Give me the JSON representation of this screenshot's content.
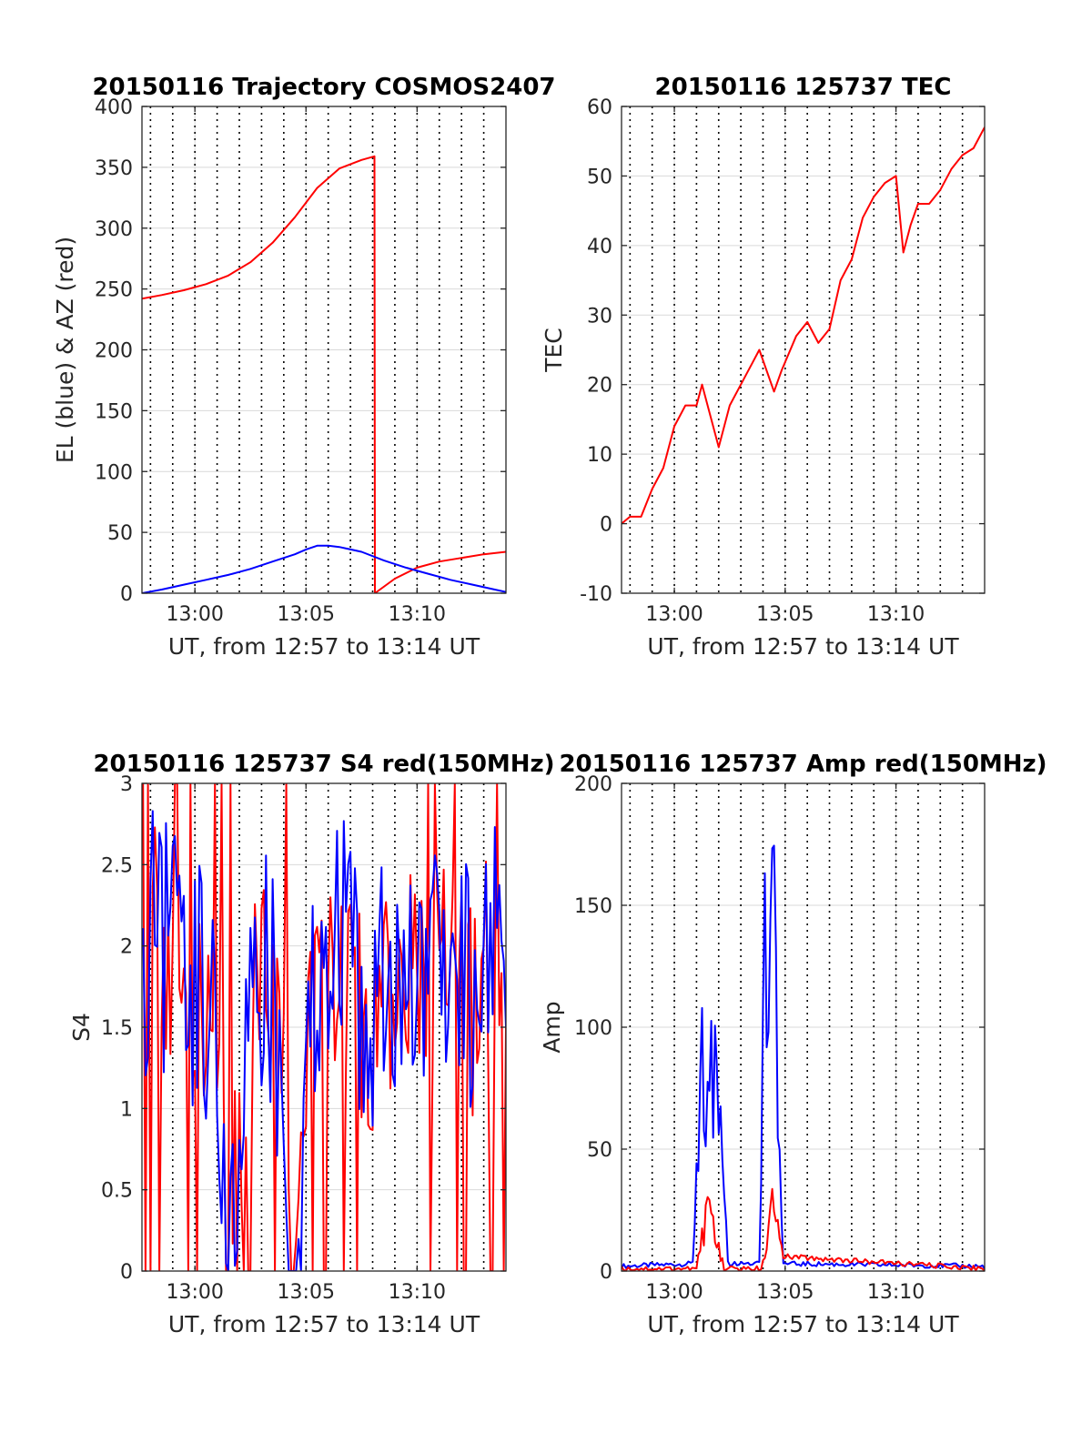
{
  "colors": {
    "red": "#ff0000",
    "blue": "#0000ff",
    "grid": "#d9d9d9",
    "dotted": "#000000",
    "axis": "#262626"
  },
  "chart_data": [
    {
      "type": "line",
      "title": "20150116 Trajectory COSMOS2407",
      "xlabel": "UT, from 12:57 to 13:14 UT",
      "ylabel": "EL (blue) & AZ (red)",
      "xlim": [
        "12:57:37",
        "13:14:00"
      ],
      "ylim": [
        0,
        400
      ],
      "yticks": [
        0,
        50,
        100,
        150,
        200,
        250,
        300,
        350,
        400
      ],
      "xticks": [
        "13:00",
        "13:05",
        "13:10"
      ],
      "minute_markers": [
        "12:58",
        "12:59",
        "13:00",
        "13:01",
        "13:02",
        "13:03",
        "13:04",
        "13:05",
        "13:06",
        "13:07",
        "13:08",
        "13:09",
        "13:10",
        "13:11",
        "13:12",
        "13:13"
      ],
      "grid": true,
      "series": [
        {
          "color": "red",
          "x": [
            "12:57:37",
            "12:58:30",
            "12:59:30",
            "13:00:30",
            "13:01:30",
            "13:02:30",
            "13:03:30",
            "13:04:30",
            "13:05:30",
            "13:06:30",
            "13:07:30",
            "13:08:05",
            "13:08:06",
            "13:09:00",
            "13:10:00",
            "13:11:00",
            "13:12:00",
            "13:13:00",
            "13:14:00"
          ],
          "y": [
            242,
            245,
            249,
            254,
            261,
            272,
            288,
            309,
            333,
            349,
            356,
            359,
            0,
            12,
            21,
            26,
            29,
            32,
            34
          ]
        },
        {
          "color": "blue",
          "x": [
            "12:57:37",
            "12:58:30",
            "12:59:30",
            "13:00:30",
            "13:01:30",
            "13:02:30",
            "13:03:30",
            "13:04:30",
            "13:05:00",
            "13:05:30",
            "13:06:00",
            "13:06:30",
            "13:07:30",
            "13:08:30",
            "13:09:30",
            "13:10:30",
            "13:11:30",
            "13:12:30",
            "13:13:30",
            "13:14:00"
          ],
          "y": [
            0,
            3,
            7,
            11,
            15,
            20,
            26,
            32,
            36,
            39,
            39,
            38,
            34,
            27,
            21,
            16,
            11,
            7,
            3,
            1
          ]
        }
      ]
    },
    {
      "type": "line",
      "title": "20150116 125737 TEC",
      "xlabel": "UT, from 12:57 to 13:14 UT",
      "ylabel": "TEC",
      "xlim": [
        "12:57:37",
        "13:14:00"
      ],
      "ylim": [
        -10,
        60
      ],
      "yticks": [
        -10,
        0,
        10,
        20,
        30,
        40,
        50,
        60
      ],
      "xticks": [
        "13:00",
        "13:05",
        "13:10"
      ],
      "minute_markers": [
        "12:58",
        "12:59",
        "13:00",
        "13:01",
        "13:02",
        "13:03",
        "13:04",
        "13:05",
        "13:06",
        "13:07",
        "13:08",
        "13:09",
        "13:10",
        "13:11",
        "13:12",
        "13:13"
      ],
      "grid": true,
      "series": [
        {
          "color": "red",
          "x": [
            "12:57:37",
            "12:58:00",
            "12:58:30",
            "12:59:00",
            "12:59:30",
            "13:00:00",
            "13:00:30",
            "13:01:00",
            "13:01:15",
            "13:02:00",
            "13:02:30",
            "13:03:00",
            "13:03:30",
            "13:03:50",
            "13:04:30",
            "13:04:50",
            "13:05:30",
            "13:06:00",
            "13:06:30",
            "13:07:00",
            "13:07:30",
            "13:08:00",
            "13:08:30",
            "13:09:00",
            "13:09:30",
            "13:10:00",
            "13:10:20",
            "13:10:40",
            "13:11:00",
            "13:11:30",
            "13:12:00",
            "13:12:30",
            "13:13:00",
            "13:13:30",
            "13:14:00"
          ],
          "y": [
            0,
            1,
            1,
            5,
            8,
            14,
            17,
            17,
            20,
            11,
            17,
            20,
            23,
            25,
            19,
            22,
            27,
            29,
            26,
            28,
            35,
            38,
            44,
            47,
            49,
            50,
            39,
            43,
            46,
            46,
            48,
            51,
            53,
            54,
            57
          ]
        }
      ]
    },
    {
      "type": "line",
      "title": "20150116 125737 S4 red(150MHz)",
      "xlabel": "UT, from 12:57 to 13:14 UT",
      "ylabel": "S4",
      "xlim": [
        "12:57:37",
        "13:14:00"
      ],
      "ylim": [
        0,
        3
      ],
      "yticks": [
        0,
        0.5,
        1,
        1.5,
        2,
        2.5,
        3
      ],
      "ytick_labels": [
        "0",
        "0.5",
        "1",
        "1.5",
        "2",
        "2.5",
        "3"
      ],
      "xticks": [
        "13:00",
        "13:05",
        "13:10"
      ],
      "minute_markers": [
        "12:58",
        "12:59",
        "13:00",
        "13:01",
        "13:02",
        "13:03",
        "13:04",
        "13:05",
        "13:06",
        "13:07",
        "13:08",
        "13:09",
        "13:10",
        "13:11",
        "13:12",
        "13:13"
      ],
      "grid": true,
      "series": [
        {
          "color": "red",
          "x": [
            "12:57:40",
            "12:58:00",
            "12:58:30",
            "12:59:00",
            "12:59:30",
            "13:00:00",
            "13:00:30",
            "13:01:00",
            "13:01:30",
            "13:02:00",
            "13:02:30",
            "13:03:00",
            "13:03:30",
            "13:04:00",
            "13:04:20",
            "13:04:40",
            "13:05:00",
            "13:05:30",
            "13:06:00",
            "13:06:30",
            "13:07:00",
            "13:07:30",
            "13:08:00",
            "13:08:30",
            "13:09:00",
            "13:09:30",
            "13:10:00",
            "13:10:30",
            "13:11:00",
            "13:11:30",
            "13:12:00",
            "13:12:30",
            "13:13:00",
            "13:13:30",
            "13:14:00"
          ],
          "y": [
            1.4,
            2.5,
            2.0,
            1.8,
            1.7,
            1.9,
            1.6,
            1.4,
            0.5,
            0.5,
            1.5,
            1.8,
            1.6,
            1.1,
            0.2,
            0.3,
            1.3,
            1.6,
            1.7,
            2.0,
            1.8,
            1.6,
            1.5,
            1.8,
            1.7,
            2.0,
            1.7,
            1.6,
            2.0,
            1.7,
            1.8,
            1.6,
            1.9,
            2.0,
            1.5
          ]
        },
        {
          "color": "blue",
          "x": [
            "12:57:40",
            "12:58:00",
            "12:58:30",
            "12:59:00",
            "12:59:30",
            "13:00:00",
            "13:00:30",
            "13:01:00",
            "13:01:30",
            "13:02:00",
            "13:02:30",
            "13:03:00",
            "13:03:30",
            "13:04:00",
            "13:04:20",
            "13:04:40",
            "13:05:00",
            "13:05:30",
            "13:06:00",
            "13:06:30",
            "13:07:00",
            "13:07:30",
            "13:08:00",
            "13:08:30",
            "13:09:00",
            "13:09:30",
            "13:10:00",
            "13:10:30",
            "13:11:00",
            "13:11:30",
            "13:12:00",
            "13:12:30",
            "13:13:00",
            "13:13:30",
            "13:14:00"
          ],
          "y": [
            1.4,
            2.3,
            2.0,
            1.9,
            1.8,
            1.8,
            1.7,
            1.2,
            0.3,
            0.3,
            1.5,
            1.8,
            1.7,
            1.2,
            0.15,
            0.15,
            1.4,
            1.7,
            1.8,
            2.1,
            1.9,
            1.7,
            1.6,
            1.9,
            1.8,
            2.1,
            1.8,
            1.7,
            2.1,
            1.8,
            1.9,
            1.7,
            2.0,
            2.1,
            1.5
          ]
        }
      ]
    },
    {
      "type": "line",
      "title": "20150116 125737 Amp red(150MHz)",
      "xlabel": "UT, from 12:57 to 13:14 UT",
      "ylabel": "Amp",
      "xlim": [
        "12:57:37",
        "13:14:00"
      ],
      "ylim": [
        0,
        200
      ],
      "yticks": [
        0,
        50,
        100,
        150,
        200
      ],
      "xticks": [
        "13:00",
        "13:05",
        "13:10"
      ],
      "minute_markers": [
        "12:58",
        "12:59",
        "13:00",
        "13:01",
        "13:02",
        "13:03",
        "13:04",
        "13:05",
        "13:06",
        "13:07",
        "13:08",
        "13:09",
        "13:10",
        "13:11",
        "13:12",
        "13:13"
      ],
      "grid": true,
      "series": [
        {
          "color": "blue",
          "x": [
            "12:57:37",
            "13:00:50",
            "13:01:05",
            "13:01:15",
            "13:01:30",
            "13:01:45",
            "13:02:00",
            "13:02:15",
            "13:02:25",
            "13:03:50",
            "13:04:05",
            "13:04:15",
            "13:04:25",
            "13:04:35",
            "13:04:45",
            "13:04:55",
            "13:14:00"
          ],
          "y": [
            1,
            2,
            60,
            108,
            80,
            90,
            75,
            40,
            2,
            2,
            135,
            90,
            161,
            120,
            70,
            2,
            1
          ]
        },
        {
          "color": "red",
          "x": [
            "12:57:37",
            "13:01:00",
            "13:01:15",
            "13:01:30",
            "13:01:45",
            "13:02:00",
            "13:02:15",
            "13:03:55",
            "13:04:10",
            "13:04:25",
            "13:04:40",
            "13:04:55",
            "13:14:00"
          ],
          "y": [
            0,
            0,
            15,
            25,
            20,
            10,
            0,
            0,
            12,
            30,
            18,
            5,
            0
          ]
        }
      ]
    }
  ]
}
